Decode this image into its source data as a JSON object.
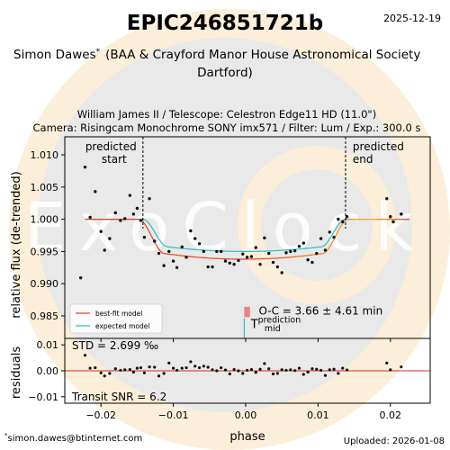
{
  "header": {
    "title": "EPIC246851721b",
    "date": "2025-12-19",
    "observer_line1": "Simon Dawes",
    "observer_mark": "*",
    "observer_affiliation": "(BAA & Crayford Manor House Astronomical Society",
    "observer_line2": "Dartford)",
    "setup_line1": "William James II / Telescope: Celestron Edge11 HD (11.0\")",
    "setup_line2": "Camera: Risingcam Monochrome SONY imx571 / Filter: Lum / Exp.: 300.0 s"
  },
  "footer": {
    "email": "simon.dawes@btinternet.com",
    "email_mark": "*",
    "uploaded": "Uploaded: 2026-01-08"
  },
  "watermark": {
    "text": "ExoClock"
  },
  "colors": {
    "data_points": "#111111",
    "best_fit": "#e3432a",
    "best_fit_ramp": [
      "#e3432a",
      "#f57a1c",
      "#f7b41a"
    ],
    "expected": "#2bbfbf",
    "residual_zero": "#d62728",
    "oc_bar": "#f08080",
    "prediction_tick": "#2bbfbf",
    "watermark_ring": "#fcefd9",
    "watermark_disc": "#e9e9e9"
  },
  "chart_data": [
    {
      "type": "scatter",
      "name": "light-curve",
      "ylabel": "relative flux (de-trended)",
      "xlim": [
        -0.025,
        0.0255
      ],
      "ylim": [
        0.9815,
        1.0128
      ],
      "xticks": [
        -0.02,
        -0.01,
        0.0,
        0.01,
        0.02
      ],
      "yticks": [
        0.985,
        0.99,
        0.995,
        1.0,
        1.005,
        1.01
      ],
      "ytick_labels": [
        "0.985",
        "0.990",
        "0.995",
        "1.000",
        "1.005",
        "1.010"
      ],
      "predicted_start": {
        "x": -0.0142,
        "label_line1": "predicted",
        "label_line2": "start"
      },
      "predicted_end": {
        "x": 0.0138,
        "label_line1": "predicted",
        "label_line2": "end"
      },
      "oc_text": "O-C = 3.66 ± 4.61 min",
      "prediction_mid_label": "T",
      "prediction_mid_sup": "prediction",
      "prediction_mid_sub": "mid",
      "oc_bar": {
        "x_from": -0.0002,
        "x_to": 0.0006,
        "y_from": 0.9848,
        "y_to": 0.9864
      },
      "prediction_tick": {
        "x": -0.0002,
        "y_from": 0.9815,
        "y_to": 0.9846
      },
      "legend": {
        "position": "bottom-left",
        "entries": [
          "best-fit model",
          "expected model"
        ]
      },
      "points": [
        [
          -0.0228,
          0.9909
        ],
        [
          -0.0222,
          1.0081
        ],
        [
          -0.0215,
          1.0003
        ],
        [
          -0.0208,
          1.0043
        ],
        [
          -0.02,
          0.9981
        ],
        [
          -0.0195,
          0.9952
        ],
        [
          -0.0188,
          0.997
        ],
        [
          -0.018,
          1.001
        ],
        [
          -0.0173,
          0.9998
        ],
        [
          -0.0167,
          1.0001
        ],
        [
          -0.016,
          1.0037
        ],
        [
          -0.0155,
          1.0008
        ],
        [
          -0.015,
          1.0017
        ],
        [
          -0.0145,
          0.9998
        ],
        [
          -0.014,
          0.9972
        ],
        [
          -0.0133,
          1.0032
        ],
        [
          -0.0126,
          0.9966
        ],
        [
          -0.012,
          0.9947
        ],
        [
          -0.0113,
          0.9928
        ],
        [
          -0.0106,
          0.995
        ],
        [
          -0.01,
          0.9935
        ],
        [
          -0.0095,
          0.9925
        ],
        [
          -0.0088,
          0.9957
        ],
        [
          -0.0082,
          0.9941
        ],
        [
          -0.0076,
          0.9982
        ],
        [
          -0.007,
          0.997
        ],
        [
          -0.0064,
          0.9962
        ],
        [
          -0.0058,
          0.995
        ],
        [
          -0.0052,
          0.9926
        ],
        [
          -0.0046,
          0.9926
        ],
        [
          -0.004,
          0.995
        ],
        [
          -0.0034,
          0.995
        ],
        [
          -0.0028,
          0.9935
        ],
        [
          -0.0022,
          0.9932
        ],
        [
          -0.0016,
          0.993
        ],
        [
          -0.001,
          0.9936
        ],
        [
          -0.0004,
          0.9946
        ],
        [
          0.0002,
          0.9941
        ],
        [
          0.0008,
          0.9942
        ],
        [
          0.0014,
          0.9956
        ],
        [
          0.002,
          0.993
        ],
        [
          0.0026,
          0.9971
        ],
        [
          0.0032,
          0.9947
        ],
        [
          0.0038,
          0.9933
        ],
        [
          0.0044,
          0.9926
        ],
        [
          0.005,
          0.9917
        ],
        [
          0.0056,
          0.9948
        ],
        [
          0.0062,
          0.995
        ],
        [
          0.0068,
          0.9951
        ],
        [
          0.0074,
          0.9958
        ],
        [
          0.008,
          0.9963
        ],
        [
          0.0086,
          0.9937
        ],
        [
          0.0092,
          0.9933
        ],
        [
          0.0098,
          0.9947
        ],
        [
          0.0104,
          0.997
        ],
        [
          0.011,
          0.9952
        ],
        [
          0.0116,
          0.998
        ],
        [
          0.0122,
          0.9972
        ],
        [
          0.0128,
          1.0
        ],
        [
          0.0134,
          0.9996
        ],
        [
          0.014,
          1.0004
        ],
        [
          0.0195,
          1.0032
        ],
        [
          0.02,
          1.0004
        ],
        [
          0.0204,
          0.9996
        ],
        [
          0.0215,
          1.0008
        ]
      ]
    },
    {
      "type": "scatter",
      "name": "residuals",
      "ylabel": "residuals",
      "xlabel": "phase",
      "xlim": [
        -0.025,
        0.0255
      ],
      "ylim": [
        -0.0125,
        0.0125
      ],
      "xticks": [
        -0.02,
        -0.01,
        0.0,
        0.01,
        0.02
      ],
      "xtick_labels": [
        "−0.02",
        "−0.01",
        "0.00",
        "0.01",
        "0.02"
      ],
      "yticks": [
        -0.01,
        0.0,
        0.01
      ],
      "ytick_labels": [
        "−0.01",
        "0.00",
        "0.01"
      ],
      "std_text": "STD = 2.699 ‰",
      "snr_text": "Transit SNR = 6.2",
      "points": [
        [
          -0.0222,
          0.006
        ],
        [
          -0.0215,
          0.001
        ],
        [
          -0.0208,
          0.0012
        ],
        [
          -0.02,
          -0.0008
        ],
        [
          -0.0195,
          -0.002
        ],
        [
          -0.0188,
          -0.001
        ],
        [
          -0.018,
          0.0008
        ],
        [
          -0.0173,
          0.0002
        ],
        [
          -0.0167,
          0.0004
        ],
        [
          -0.016,
          0.0005
        ],
        [
          -0.0155,
          -0.0005
        ],
        [
          -0.015,
          0.001
        ],
        [
          -0.0145,
          0.0012
        ],
        [
          -0.014,
          -0.0008
        ],
        [
          -0.0133,
          0.0015
        ],
        [
          -0.0126,
          0.0014
        ],
        [
          -0.012,
          -0.002
        ],
        [
          -0.0113,
          -0.001
        ],
        [
          -0.0106,
          0.003
        ],
        [
          -0.01,
          0.001
        ],
        [
          -0.0095,
          0.0002
        ],
        [
          -0.0088,
          0.001
        ],
        [
          -0.0082,
          0.0012
        ],
        [
          -0.0076,
          0.0035
        ],
        [
          -0.007,
          0.0018
        ],
        [
          -0.0064,
          0.0012
        ],
        [
          -0.0058,
          0.0018
        ],
        [
          -0.0052,
          0.0014
        ],
        [
          -0.0046,
          0.0004
        ],
        [
          -0.004,
          0.0
        ],
        [
          -0.0034,
          0.0012
        ],
        [
          -0.0028,
          0.0003
        ],
        [
          -0.0022,
          -0.0012
        ],
        [
          -0.0016,
          0.0005
        ],
        [
          -0.001,
          0.0
        ],
        [
          -0.0004,
          -0.001
        ],
        [
          0.0002,
          0.0002
        ],
        [
          0.0008,
          0.0005
        ],
        [
          0.0014,
          -0.0006
        ],
        [
          0.002,
          0.0006
        ],
        [
          0.0026,
          0.0028
        ],
        [
          0.0032,
          0.0008
        ],
        [
          0.0038,
          -0.0012
        ],
        [
          0.0044,
          -0.001
        ],
        [
          0.005,
          0.0004
        ],
        [
          0.0056,
          0.0002
        ],
        [
          0.0062,
          0.0004
        ],
        [
          0.0068,
          0.0001
        ],
        [
          0.0074,
          0.001
        ],
        [
          0.008,
          -0.0014
        ],
        [
          0.0086,
          -0.0005
        ],
        [
          0.0092,
          0.0008
        ],
        [
          0.0098,
          0.0006
        ],
        [
          0.0104,
          0.0002
        ],
        [
          0.011,
          -0.0018
        ],
        [
          0.0116,
          0.0004
        ],
        [
          0.0122,
          0.0006
        ],
        [
          0.0128,
          -0.001
        ],
        [
          0.0134,
          0.001
        ],
        [
          0.014,
          0.0003
        ],
        [
          0.0195,
          0.003
        ],
        [
          0.02,
          0.0004
        ],
        [
          0.0215,
          0.0015
        ]
      ]
    }
  ]
}
